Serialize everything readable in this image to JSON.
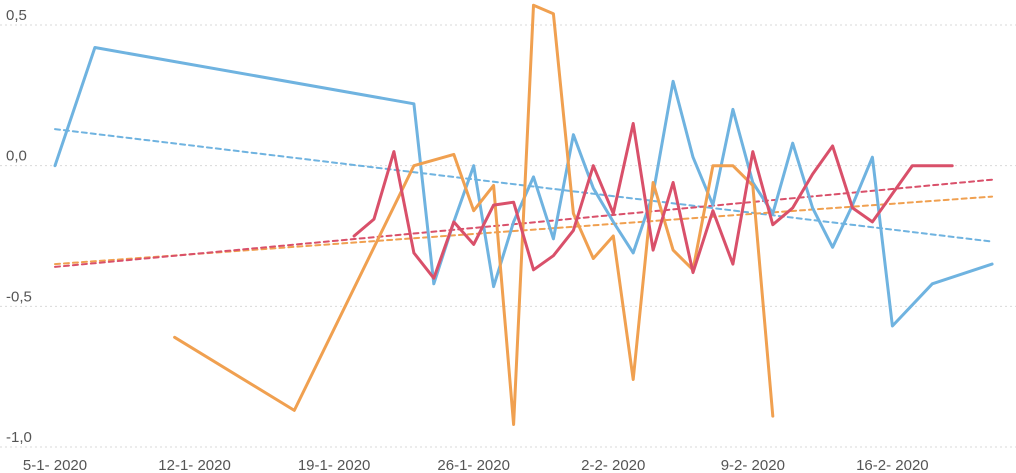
{
  "chart_data": {
    "type": "line",
    "title": "",
    "xlabel": "",
    "ylabel": "",
    "ylim": [
      -1.0,
      0.5
    ],
    "y_ticks": [
      0.5,
      0.0,
      -0.5,
      -1.0
    ],
    "y_tick_labels": [
      "0,5",
      "0,0",
      "-0,5",
      "-1,0"
    ],
    "x_ticks": [
      "2020-01-05",
      "2020-01-12",
      "2020-01-19",
      "2020-01-26",
      "2020-02-02",
      "2020-02-09",
      "2020-02-16"
    ],
    "x_tick_labels": [
      "5-1- 2020",
      "12-1- 2020",
      "19-1- 2020",
      "26-1- 2020",
      "2-2- 2020",
      "9-2- 2020",
      "16-2- 2020"
    ],
    "xlim": [
      "2020-01-05",
      "2020-02-22"
    ],
    "grid": "horizontal dotted",
    "legend": "none",
    "series": [
      {
        "color": "#6fb3e0",
        "style": "solid",
        "points": [
          [
            "2020-01-05",
            0.0
          ],
          [
            "2020-01-07",
            0.42
          ],
          [
            "2020-01-23",
            0.22
          ],
          [
            "2020-01-24",
            -0.42
          ],
          [
            "2020-01-25",
            -0.2
          ],
          [
            "2020-01-26",
            0.0
          ],
          [
            "2020-01-27",
            -0.43
          ],
          [
            "2020-01-28",
            -0.2
          ],
          [
            "2020-01-29",
            -0.04
          ],
          [
            "2020-01-30",
            -0.26
          ],
          [
            "2020-01-31",
            0.11
          ],
          [
            "2020-02-01",
            -0.08
          ],
          [
            "2020-02-02",
            -0.2
          ],
          [
            "2020-02-03",
            -0.31
          ],
          [
            "2020-02-04",
            -0.1
          ],
          [
            "2020-02-05",
            0.3
          ],
          [
            "2020-02-06",
            0.03
          ],
          [
            "2020-02-07",
            -0.14
          ],
          [
            "2020-02-08",
            0.2
          ],
          [
            "2020-02-09",
            -0.06
          ],
          [
            "2020-02-10",
            -0.17
          ],
          [
            "2020-02-11",
            0.08
          ],
          [
            "2020-02-12",
            -0.15
          ],
          [
            "2020-02-13",
            -0.29
          ],
          [
            "2020-02-14",
            -0.14
          ],
          [
            "2020-02-15",
            0.03
          ],
          [
            "2020-02-16",
            -0.57
          ],
          [
            "2020-02-18",
            -0.42
          ],
          [
            "2020-02-21",
            -0.35
          ]
        ]
      },
      {
        "color": "#f0a050",
        "style": "solid",
        "points": [
          [
            "2020-01-11",
            -0.61
          ],
          [
            "2020-01-17",
            -0.87
          ],
          [
            "2020-01-23",
            0.0
          ],
          [
            "2020-01-25",
            0.04
          ],
          [
            "2020-01-26",
            -0.16
          ],
          [
            "2020-01-27",
            -0.07
          ],
          [
            "2020-01-28",
            -0.92
          ],
          [
            "2020-01-29",
            0.57
          ],
          [
            "2020-01-30",
            0.54
          ],
          [
            "2020-01-31",
            -0.17
          ],
          [
            "2020-02-01",
            -0.33
          ],
          [
            "2020-02-02",
            -0.25
          ],
          [
            "2020-02-03",
            -0.76
          ],
          [
            "2020-02-04",
            -0.06
          ],
          [
            "2020-02-05",
            -0.3
          ],
          [
            "2020-02-06",
            -0.37
          ],
          [
            "2020-02-07",
            0.0
          ],
          [
            "2020-02-08",
            0.0
          ],
          [
            "2020-02-09",
            -0.07
          ],
          [
            "2020-02-10",
            -0.89
          ]
        ]
      },
      {
        "color": "#d9506a",
        "style": "solid",
        "points": [
          [
            "2020-01-20",
            -0.25
          ],
          [
            "2020-01-21",
            -0.19
          ],
          [
            "2020-01-22",
            0.05
          ],
          [
            "2020-01-23",
            -0.31
          ],
          [
            "2020-01-24",
            -0.4
          ],
          [
            "2020-01-25",
            -0.2
          ],
          [
            "2020-01-26",
            -0.28
          ],
          [
            "2020-01-27",
            -0.14
          ],
          [
            "2020-01-28",
            -0.13
          ],
          [
            "2020-01-29",
            -0.37
          ],
          [
            "2020-01-30",
            -0.32
          ],
          [
            "2020-01-31",
            -0.23
          ],
          [
            "2020-02-01",
            0.0
          ],
          [
            "2020-02-02",
            -0.17
          ],
          [
            "2020-02-03",
            0.15
          ],
          [
            "2020-02-04",
            -0.3
          ],
          [
            "2020-02-05",
            -0.06
          ],
          [
            "2020-02-06",
            -0.38
          ],
          [
            "2020-02-07",
            -0.16
          ],
          [
            "2020-02-08",
            -0.35
          ],
          [
            "2020-02-09",
            0.05
          ],
          [
            "2020-02-10",
            -0.21
          ],
          [
            "2020-02-11",
            -0.15
          ],
          [
            "2020-02-12",
            -0.03
          ],
          [
            "2020-02-13",
            0.07
          ],
          [
            "2020-02-14",
            -0.15
          ],
          [
            "2020-02-15",
            -0.2
          ],
          [
            "2020-02-16",
            -0.1
          ],
          [
            "2020-02-17",
            0.0
          ],
          [
            "2020-02-19",
            0.0
          ]
        ]
      },
      {
        "color": "#6fb3e0",
        "style": "dashed",
        "points": [
          [
            "2020-01-05",
            0.13
          ],
          [
            "2020-02-21",
            -0.27
          ]
        ]
      },
      {
        "color": "#f0a050",
        "style": "dashed",
        "points": [
          [
            "2020-01-05",
            -0.35
          ],
          [
            "2020-02-21",
            -0.11
          ]
        ]
      },
      {
        "color": "#d9506a",
        "style": "dashed",
        "points": [
          [
            "2020-01-05",
            -0.36
          ],
          [
            "2020-02-21",
            -0.05
          ]
        ]
      }
    ]
  }
}
